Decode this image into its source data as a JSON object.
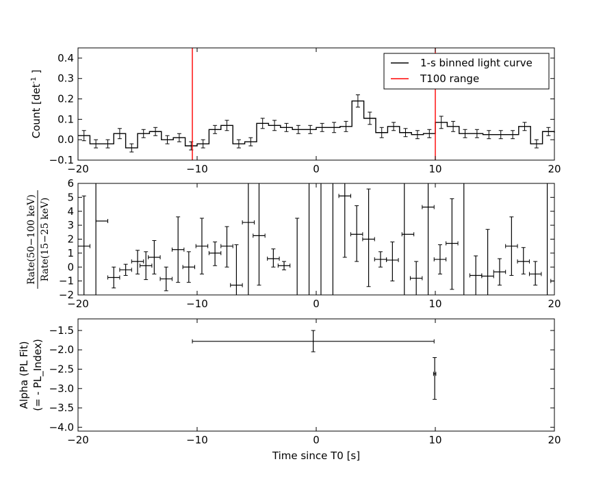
{
  "chart_data": [
    {
      "type": "line",
      "panel": "light-curve",
      "ylabel": "Count [det",
      "ylabel_sup": "-1",
      "ylabel_tail": "]",
      "xlim": [
        -20,
        20
      ],
      "ylim": [
        -0.1,
        0.45
      ],
      "xticks": [
        -20,
        -10,
        0,
        10,
        20
      ],
      "yticks": [
        -0.1,
        0.0,
        0.1,
        0.2,
        0.3,
        0.4
      ],
      "ytick_labels": [
        "−0.1",
        "0.0",
        "0.1",
        "0.2",
        "0.3",
        "0.4"
      ],
      "xtick_labels": [
        "−20",
        "−10",
        "0",
        "10",
        "20"
      ],
      "legend": {
        "placement": "top-right",
        "entries": [
          {
            "label": "1-s binned light curve",
            "color": "#000000"
          },
          {
            "label": "T100 range",
            "color": "#ff0000"
          }
        ]
      },
      "t100_lines": [
        -10.4,
        10.0
      ],
      "bin_start": -20,
      "bin_width": 1,
      "values": [
        0.02,
        -0.02,
        -0.02,
        0.03,
        -0.04,
        0.03,
        0.04,
        0.0,
        0.01,
        -0.03,
        -0.02,
        0.05,
        0.07,
        -0.02,
        -0.01,
        0.08,
        0.07,
        0.06,
        0.05,
        0.05,
        0.06,
        0.06,
        0.065,
        0.19,
        0.105,
        0.035,
        0.065,
        0.035,
        0.025,
        0.03,
        0.085,
        0.065,
        0.03,
        0.03,
        0.025,
        0.025,
        0.025,
        0.065,
        -0.02,
        0.04,
        0.035
      ],
      "errors": [
        0.025,
        0.02,
        0.02,
        0.025,
        0.02,
        0.02,
        0.02,
        0.02,
        0.02,
        0.02,
        0.02,
        0.02,
        0.025,
        0.02,
        0.02,
        0.025,
        0.025,
        0.02,
        0.02,
        0.02,
        0.02,
        0.025,
        0.025,
        0.03,
        0.03,
        0.025,
        0.02,
        0.02,
        0.02,
        0.02,
        0.03,
        0.025,
        0.02,
        0.02,
        0.02,
        0.02,
        0.02,
        0.02,
        0.02,
        0.02,
        0.02
      ]
    },
    {
      "type": "scatter",
      "panel": "hardness-ratio",
      "ylabel_num": "Rate(50−100 keV)",
      "ylabel_den": "Rate(15−25 keV)",
      "xlim": [
        -20,
        20
      ],
      "ylim": [
        -2,
        6
      ],
      "xticks": [
        -20,
        -10,
        0,
        10,
        20
      ],
      "yticks": [
        -2,
        -1,
        0,
        1,
        2,
        3,
        4,
        5,
        6
      ],
      "ytick_labels": [
        "−2",
        "−1",
        "0",
        "1",
        "2",
        "3",
        "4",
        "5",
        "6"
      ],
      "xtick_labels": [
        "−20",
        "−10",
        "0",
        "10",
        "20"
      ],
      "points": [
        {
          "x": -19.5,
          "y": 1.5,
          "xerr": 0.5,
          "ylo": -2,
          "yhi": 5.1
        },
        {
          "x": -18.5,
          "y": null,
          "xerr": 0.0,
          "ylo": -2,
          "yhi": 6
        },
        {
          "x": -18.0,
          "y": 3.3,
          "xerr": 0.5,
          "ylo": 3.3,
          "yhi": 3.3
        },
        {
          "x": -17.0,
          "y": -0.75,
          "xerr": 0.5,
          "ylo": -1.5,
          "yhi": 0.0
        },
        {
          "x": -16.0,
          "y": -0.2,
          "xerr": 0.5,
          "ylo": -0.6,
          "yhi": 0.2
        },
        {
          "x": -15.0,
          "y": 0.4,
          "xerr": 0.5,
          "ylo": -0.5,
          "yhi": 1.2
        },
        {
          "x": -14.3,
          "y": 0.1,
          "xerr": 0.5,
          "ylo": -0.9,
          "yhi": 1.1
        },
        {
          "x": -13.6,
          "y": 0.7,
          "xerr": 0.5,
          "ylo": -0.5,
          "yhi": 1.9
        },
        {
          "x": -12.6,
          "y": -0.85,
          "xerr": 0.5,
          "ylo": -1.7,
          "yhi": 0.0
        },
        {
          "x": -11.6,
          "y": 1.25,
          "xerr": 0.5,
          "ylo": -1.1,
          "yhi": 3.6
        },
        {
          "x": -10.7,
          "y": 0.0,
          "xerr": 0.5,
          "ylo": -1.1,
          "yhi": 1.1
        },
        {
          "x": -9.6,
          "y": 1.5,
          "xerr": 0.5,
          "ylo": -0.5,
          "yhi": 3.5
        },
        {
          "x": -8.5,
          "y": 1.0,
          "xerr": 0.5,
          "ylo": 0.1,
          "yhi": 1.8
        },
        {
          "x": -7.5,
          "y": 1.5,
          "xerr": 0.5,
          "ylo": 0.0,
          "yhi": 2.9
        },
        {
          "x": -6.7,
          "y": -1.3,
          "xerr": 0.5,
          "ylo": -2,
          "yhi": 1.6
        },
        {
          "x": -5.7,
          "y": 3.2,
          "xerr": 0.5,
          "ylo": -2,
          "yhi": 6
        },
        {
          "x": -4.8,
          "y": 2.25,
          "xerr": 0.5,
          "ylo": -1.3,
          "yhi": 6
        },
        {
          "x": -3.6,
          "y": 0.6,
          "xerr": 0.5,
          "ylo": 0.0,
          "yhi": 1.3
        },
        {
          "x": -2.7,
          "y": 0.1,
          "xerr": 0.5,
          "ylo": -0.2,
          "yhi": 0.4
        },
        {
          "x": -1.6,
          "y": null,
          "xerr": 0.0,
          "ylo": -2,
          "yhi": 3.5
        },
        {
          "x": -0.6,
          "y": null,
          "xerr": 0.0,
          "ylo": -2,
          "yhi": 6
        },
        {
          "x": 0.4,
          "y": null,
          "xerr": 0.0,
          "ylo": -2,
          "yhi": 6
        },
        {
          "x": 1.4,
          "y": null,
          "xerr": 0.0,
          "ylo": -2,
          "yhi": 6
        },
        {
          "x": 2.4,
          "y": 5.1,
          "xerr": 0.5,
          "ylo": 0.7,
          "yhi": 6
        },
        {
          "x": 3.4,
          "y": 2.35,
          "xerr": 0.5,
          "ylo": 0.4,
          "yhi": 4.4
        },
        {
          "x": 4.4,
          "y": 2.0,
          "xerr": 0.5,
          "ylo": -1.4,
          "yhi": 5.6
        },
        {
          "x": 5.4,
          "y": 0.55,
          "xerr": 0.5,
          "ylo": 0.0,
          "yhi": 1.1
        },
        {
          "x": 6.4,
          "y": 0.5,
          "xerr": 0.5,
          "ylo": -1.0,
          "yhi": 1.8
        },
        {
          "x": 7.4,
          "y": null,
          "xerr": 0.0,
          "ylo": -2,
          "yhi": 6
        },
        {
          "x": 7.7,
          "y": 2.35,
          "xerr": 0.5,
          "ylo": 2.35,
          "yhi": 2.35
        },
        {
          "x": 8.4,
          "y": -0.8,
          "xerr": 0.5,
          "ylo": -2,
          "yhi": 0.4
        },
        {
          "x": 9.4,
          "y": null,
          "xerr": 0.0,
          "ylo": -2,
          "yhi": 6
        },
        {
          "x": 9.4,
          "y": 4.3,
          "xerr": 0.5,
          "ylo": 4.3,
          "yhi": 4.3
        },
        {
          "x": 10.4,
          "y": 0.55,
          "xerr": 0.5,
          "ylo": -0.5,
          "yhi": 1.6
        },
        {
          "x": 11.4,
          "y": 1.7,
          "xerr": 0.5,
          "ylo": -1.6,
          "yhi": 4.9
        },
        {
          "x": 12.4,
          "y": null,
          "xerr": 0.0,
          "ylo": -2,
          "yhi": 6
        },
        {
          "x": 13.4,
          "y": -0.6,
          "xerr": 0.5,
          "ylo": -2,
          "yhi": 0.8
        },
        {
          "x": 14.4,
          "y": -0.65,
          "xerr": 0.5,
          "ylo": -2,
          "yhi": 2.7
        },
        {
          "x": 15.4,
          "y": -0.35,
          "xerr": 0.5,
          "ylo": -1.3,
          "yhi": 0.6
        },
        {
          "x": 16.4,
          "y": 1.5,
          "xerr": 0.5,
          "ylo": -0.6,
          "yhi": 3.6
        },
        {
          "x": 17.4,
          "y": 0.4,
          "xerr": 0.5,
          "ylo": -0.5,
          "yhi": 1.4
        },
        {
          "x": 18.4,
          "y": -0.5,
          "xerr": 0.5,
          "ylo": -1.3,
          "yhi": 0.4
        },
        {
          "x": 19.4,
          "y": null,
          "xerr": 0.0,
          "ylo": -2,
          "yhi": 6
        },
        {
          "x": 20.0,
          "y": -1.0,
          "xerr": 0.3,
          "ylo": -1.0,
          "yhi": -1.0
        }
      ]
    },
    {
      "type": "scatter",
      "panel": "photon-index",
      "ylabel_line1": "Alpha (PL Fit)",
      "ylabel_line2": "(= - PL_Index)",
      "xlabel": "Time since T0 [s]",
      "xlim": [
        -20,
        20
      ],
      "ylim": [
        -4.1,
        -1.2
      ],
      "xticks": [
        -20,
        -10,
        0,
        10,
        20
      ],
      "yticks": [
        -4.0,
        -3.5,
        -3.0,
        -2.5,
        -2.0,
        -1.5
      ],
      "ytick_labels": [
        "−4.0",
        "−3.5",
        "−3.0",
        "−2.5",
        "−2.0",
        "−1.5"
      ],
      "xtick_labels": [
        "−20",
        "−10",
        "0",
        "10",
        "20"
      ],
      "points": [
        {
          "x": -0.25,
          "y": -1.78,
          "xlo": -10.4,
          "xhi": 9.9,
          "ylo": -2.05,
          "yhi": -1.5
        },
        {
          "x": 9.95,
          "y": -2.62,
          "xlo": 9.85,
          "xhi": 10.05,
          "ylo": -3.28,
          "yhi": -2.2
        }
      ]
    }
  ]
}
